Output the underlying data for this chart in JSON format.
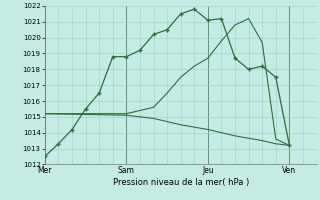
{
  "xlabel": "Pression niveau de la mer( hPa )",
  "bg_color": "#c5ece4",
  "grid_color": "#9ecfc7",
  "line_color": "#2d6e3e",
  "vline_color": "#4a8a60",
  "ylim": [
    1012,
    1022
  ],
  "yticks": [
    1012,
    1013,
    1014,
    1015,
    1016,
    1017,
    1018,
    1019,
    1020,
    1021,
    1022
  ],
  "day_labels": [
    "Mer",
    "Sam",
    "Jeu",
    "Ven"
  ],
  "day_positions": [
    0,
    3,
    6,
    9
  ],
  "xlim": [
    0,
    9.5
  ],
  "line1": {
    "x": [
      0,
      0.5,
      1.0,
      1.5,
      2.0,
      2.5,
      3.0,
      3.5,
      4.0,
      4.5,
      5.0,
      5.5,
      6.0,
      6.5,
      7.0,
      7.5,
      8.0,
      8.5,
      9.0
    ],
    "y": [
      1012.5,
      1013.3,
      1014.2,
      1015.5,
      1016.5,
      1018.8,
      1018.8,
      1019.2,
      1020.2,
      1020.5,
      1021.5,
      1021.8,
      1021.1,
      1021.2,
      1018.7,
      1018.0,
      1018.2,
      1017.5,
      1013.2
    ]
  },
  "line2": {
    "x": [
      0,
      3.0,
      4.0,
      4.5,
      5.0,
      5.5,
      6.0,
      6.5,
      7.0,
      7.5,
      8.0,
      8.5,
      9.0
    ],
    "y": [
      1015.2,
      1015.2,
      1015.6,
      1016.5,
      1017.5,
      1018.2,
      1018.7,
      1019.8,
      1020.8,
      1021.2,
      1019.7,
      1013.6,
      1013.2
    ]
  },
  "line3": {
    "x": [
      0,
      3.0,
      4.0,
      5.0,
      6.0,
      7.0,
      8.0,
      8.5,
      9.0
    ],
    "y": [
      1015.2,
      1015.1,
      1014.9,
      1014.5,
      1014.2,
      1013.8,
      1013.5,
      1013.3,
      1013.2
    ]
  }
}
